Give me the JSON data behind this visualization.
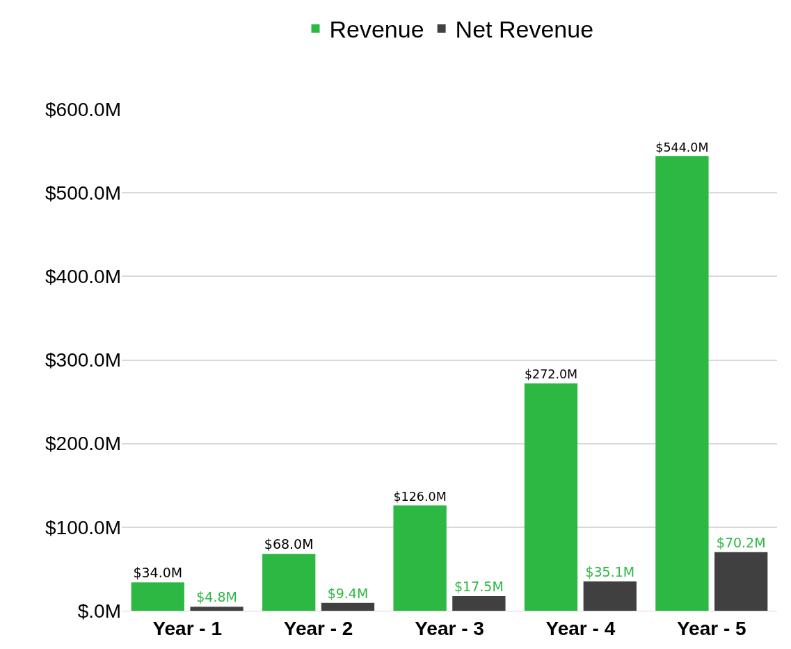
{
  "chart_data": {
    "type": "bar",
    "categories": [
      "Year - 1",
      "Year - 2",
      "Year - 3",
      "Year - 4",
      "Year - 5"
    ],
    "series": [
      {
        "name": "Revenue",
        "color": "#2db843",
        "values": [
          34,
          68,
          126,
          272,
          544
        ],
        "value_labels": [
          "$34.0M",
          "$68.0M",
          "$126.0M",
          "$272.0M",
          "$544.0M"
        ]
      },
      {
        "name": "Net Revenue",
        "color": "#404040",
        "values": [
          4.8,
          9.4,
          17.5,
          35.1,
          70.2
        ],
        "value_labels": [
          "$4.8M",
          "$9.4M",
          "$17.5M",
          "$35.1M",
          "$70.2M"
        ]
      }
    ],
    "ylim": [
      0,
      600
    ],
    "yticks": [
      {
        "value": 0,
        "label": "$.0M"
      },
      {
        "value": 100,
        "label": "$100.0M"
      },
      {
        "value": 200,
        "label": "$200.0M"
      },
      {
        "value": 300,
        "label": "$300.0M"
      },
      {
        "value": 400,
        "label": "$400.0M"
      },
      {
        "value": 500,
        "label": "$500.0M"
      },
      {
        "value": 600,
        "label": "$600.0M"
      }
    ],
    "grid": "y",
    "legend": "top"
  }
}
